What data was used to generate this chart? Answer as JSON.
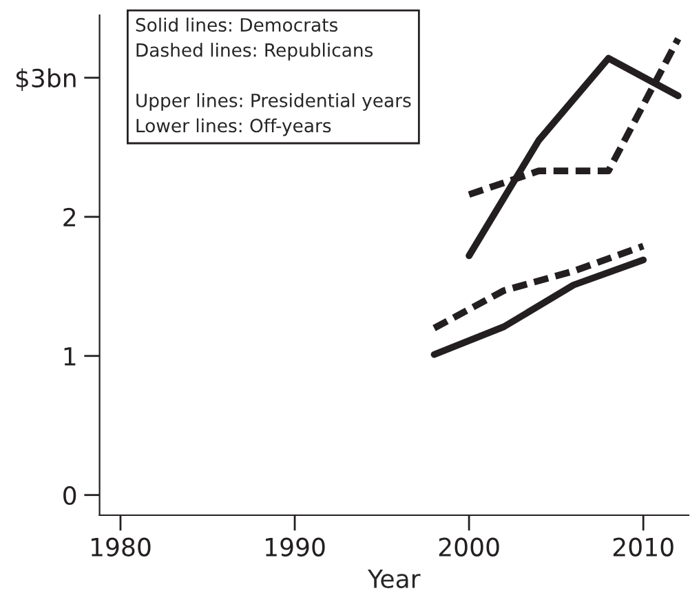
{
  "chart_data": {
    "type": "line",
    "xlabel": "Year",
    "annotations": [
      "Solid lines: Democrats",
      "Dashed lines: Republicans",
      "Upper lines: Presidential years",
      "Lower lines: Off-years"
    ],
    "series": [
      {
        "color": "#231f20",
        "line_style": "solid",
        "x": [
          2000,
          2004,
          2008,
          2012
        ],
        "values": [
          1.72,
          2.55,
          3.14,
          2.87
        ]
      },
      {
        "color": "#231f20",
        "line_style": "dashed",
        "x": [
          2000,
          2004,
          2008,
          2012
        ],
        "values": [
          2.16,
          2.33,
          2.33,
          3.28
        ]
      },
      {
        "color": "#231f20",
        "line_style": "solid",
        "x": [
          1998,
          2002,
          2006,
          2010
        ],
        "values": [
          1.01,
          1.21,
          1.51,
          1.69
        ]
      },
      {
        "color": "#231f20",
        "line_style": "dashed",
        "x": [
          1998,
          2002,
          2006,
          2010
        ],
        "values": [
          1.2,
          1.47,
          1.61,
          1.79
        ]
      }
    ],
    "xlim": [
      1978.8,
      2012.6
    ],
    "ylim": [
      -0.145,
      3.45
    ],
    "xticks": [
      1980,
      1990,
      2000,
      2010
    ],
    "yticks": [
      0,
      1,
      2,
      {
        "value": 3,
        "label": "$3bn"
      }
    ],
    "grid": false,
    "legend": false
  }
}
